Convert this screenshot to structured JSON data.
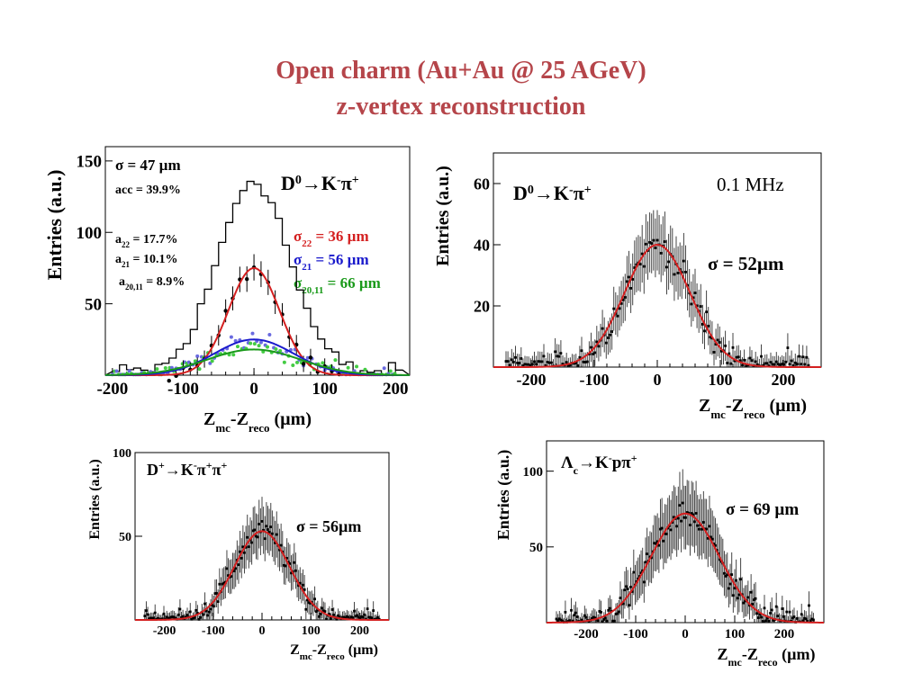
{
  "page": {
    "title_line1": "Open charm (Au+Au @ 25 AGeV)",
    "title_line2": "z-vertex reconstruction"
  },
  "colors": {
    "title": "#b5454a",
    "fit_red": "#d42020",
    "fit_blue": "#1a1acc",
    "fit_green": "#1a9a1a",
    "points_blue": "#6a6ae0",
    "points_green": "#44cc44",
    "axis": "#000000"
  },
  "chart_data": [
    {
      "type": "line",
      "channel": "D0->K-pi+ (primary vertex components)",
      "ylabel": "Entries (a.u.)",
      "xlabel": "Zmc-Zreco (µm)",
      "xlim": [
        -210,
        220
      ],
      "ylim": [
        0,
        160
      ],
      "xticks": [
        -200,
        -100,
        0,
        100,
        200
      ],
      "yticks": [
        50,
        100,
        150
      ],
      "annotations": {
        "sigma": "σ = 47 µm",
        "acc": "acc = 39.9%",
        "a22": "a22 = 17.7%",
        "a21": "a21 = 10.1%",
        "a2011": "a20,11 = 8.9%",
        "channel": "D0→K-π+",
        "s22": "σ22 = 36 µm",
        "s21": "σ21 = 56 µm",
        "s2011": "σ20,11 = 66 µm"
      },
      "series": [
        {
          "kind": "gauss",
          "color": "#d42020",
          "amp": 75,
          "mean": 0,
          "sigma": 36
        },
        {
          "kind": "gauss",
          "color": "#1a1acc",
          "amp": 25,
          "mean": 0,
          "sigma": 56
        },
        {
          "kind": "gauss",
          "color": "#1a9a1a",
          "amp": 18,
          "mean": 0,
          "sigma": 66
        }
      ],
      "histogram": {
        "bin_width": 10,
        "amp": 135,
        "sigma": 50
      }
    },
    {
      "type": "scatter",
      "channel": "D0->K-pi+ (0.1 MHz)",
      "ylabel": "Entries (a.u.)",
      "xlabel": "Zmc-Zreco (µm)",
      "xlim": [
        -260,
        260
      ],
      "ylim": [
        0,
        70
      ],
      "xticks": [
        -200,
        -100,
        0,
        100,
        200
      ],
      "yticks": [
        20,
        40,
        60
      ],
      "annotations": {
        "channel": "D0→K-π+",
        "rate": "0.1 MHz",
        "sigma": "σ = 52µm"
      },
      "fit": {
        "amp": 40,
        "mean": 0,
        "sigma": 52
      }
    },
    {
      "type": "scatter",
      "channel": "D+->K-pi+pi+",
      "ylabel": "Entries (a.u.)",
      "xlabel": "Zmc-Zreco (µm)",
      "xlim": [
        -260,
        260
      ],
      "ylim": [
        0,
        100
      ],
      "xticks": [
        -200,
        -100,
        0,
        100,
        200
      ],
      "yticks": [
        50,
        100
      ],
      "annotations": {
        "channel": "D+→K-π+π+",
        "sigma": "σ = 56µm"
      },
      "fit": {
        "amp": 53,
        "mean": 0,
        "sigma": 56
      }
    },
    {
      "type": "scatter",
      "channel": "Lambda_c->K-p pi+",
      "ylabel": "Entries (a.u.)",
      "xlabel": "Zmc-Zreco (µm)",
      "xlim": [
        -280,
        280
      ],
      "ylim": [
        0,
        120
      ],
      "xticks": [
        -200,
        -100,
        0,
        100,
        200
      ],
      "yticks": [
        50,
        100
      ],
      "annotations": {
        "channel": "Λc→K-pπ+",
        "sigma": "σ = 69 µm"
      },
      "fit": {
        "amp": 72,
        "mean": 0,
        "sigma": 69
      }
    }
  ]
}
